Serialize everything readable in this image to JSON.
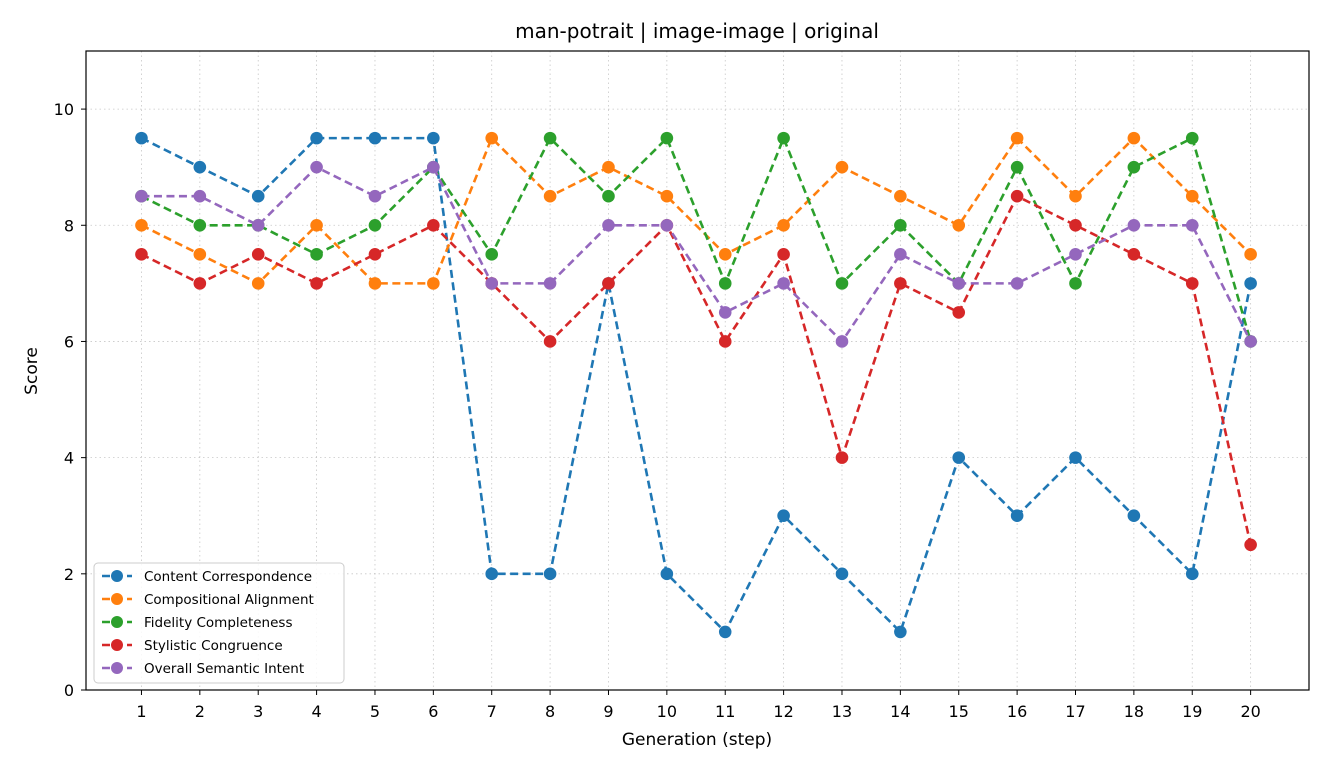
{
  "chart_data": {
    "type": "line",
    "title": "man-potrait | image-image | original",
    "xlabel": "Generation (step)",
    "ylabel": "Score",
    "x": [
      1,
      2,
      3,
      4,
      5,
      6,
      7,
      8,
      9,
      10,
      11,
      12,
      13,
      14,
      15,
      16,
      17,
      18,
      19,
      20
    ],
    "xlim": [
      0.05,
      21.0
    ],
    "ylim": [
      0,
      11
    ],
    "yticks": [
      0,
      2,
      4,
      6,
      8,
      10
    ],
    "grid": true,
    "legend_position": "lower-left",
    "series": [
      {
        "name": "Content Correspondence",
        "color": "#1f77b4",
        "values": [
          9.5,
          9,
          8.5,
          9.5,
          9.5,
          9.5,
          2,
          2,
          7,
          2,
          1,
          3,
          2,
          1,
          4,
          3,
          4,
          3,
          2,
          7
        ]
      },
      {
        "name": "Compositional Alignment",
        "color": "#ff7f0e",
        "values": [
          8,
          7.5,
          7,
          8,
          7,
          7,
          9.5,
          8.5,
          9,
          8.5,
          7.5,
          8,
          9,
          8.5,
          8,
          9.5,
          8.5,
          9.5,
          8.5,
          7.5
        ]
      },
      {
        "name": "Fidelity Completeness",
        "color": "#2ca02c",
        "values": [
          8.5,
          8,
          8,
          7.5,
          8,
          9,
          7.5,
          9.5,
          8.5,
          9.5,
          7,
          9.5,
          7,
          8,
          7,
          9,
          7,
          9,
          9.5,
          6
        ]
      },
      {
        "name": "Stylistic Congruence",
        "color": "#d62728",
        "values": [
          7.5,
          7,
          7.5,
          7,
          7.5,
          8,
          7,
          6,
          7,
          8,
          6,
          7.5,
          4,
          7,
          6.5,
          8.5,
          8,
          7.5,
          7,
          2.5
        ]
      },
      {
        "name": "Overall Semantic Intent",
        "color": "#9467bd",
        "values": [
          8.5,
          8.5,
          8,
          9,
          8.5,
          9,
          7,
          7,
          8,
          8,
          6.5,
          7,
          6,
          7.5,
          7,
          7,
          7.5,
          8,
          8,
          6
        ]
      }
    ]
  }
}
